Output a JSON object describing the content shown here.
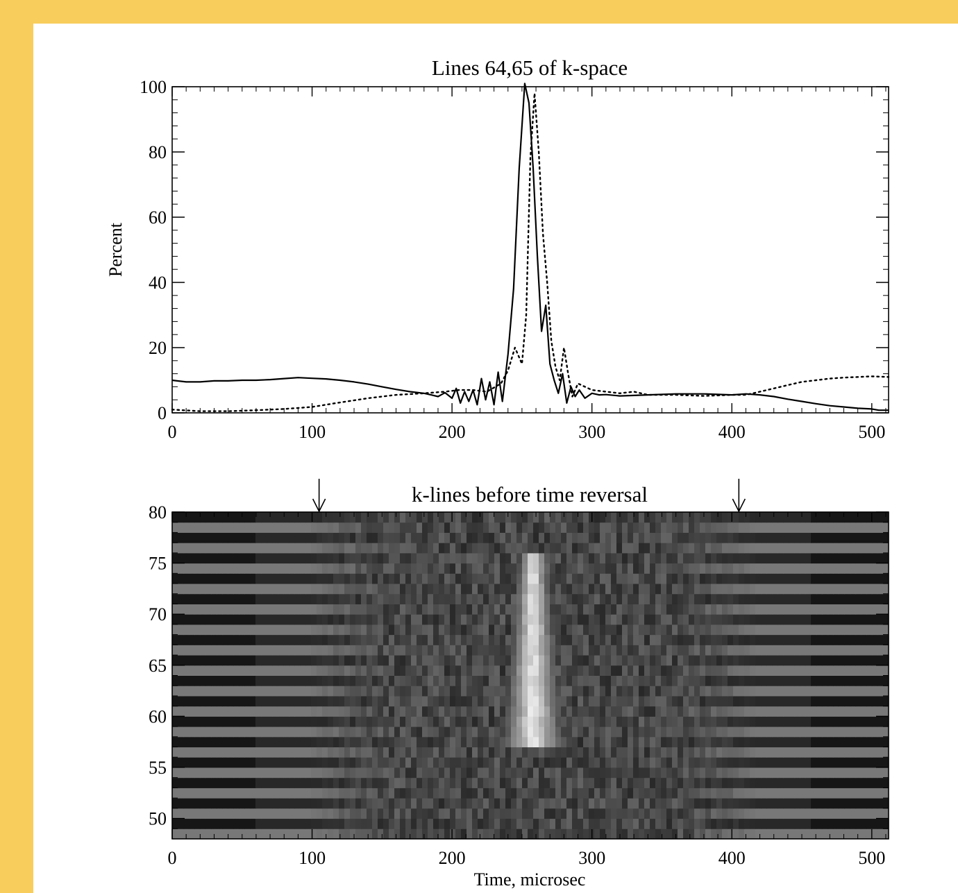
{
  "frame": {
    "color": "#f8cd5c"
  },
  "chart_data": [
    {
      "type": "line",
      "title": "Lines 64,65 of k-space",
      "xlabel": "",
      "ylabel": "Percent",
      "xlim": [
        0,
        512
      ],
      "ylim": [
        0,
        100
      ],
      "x_ticks": [
        0,
        100,
        200,
        300,
        400,
        500
      ],
      "x_tick_labels": [
        "0",
        "100",
        "200",
        "300",
        "400",
        "500"
      ],
      "y_ticks": [
        0,
        20,
        40,
        60,
        80,
        100
      ],
      "y_tick_labels": [
        "0",
        "20",
        "40",
        "60",
        "80",
        "100"
      ],
      "grid": false,
      "series": [
        {
          "style": "solid",
          "x": [
            0,
            10,
            20,
            30,
            40,
            50,
            60,
            70,
            80,
            90,
            100,
            110,
            120,
            130,
            140,
            150,
            160,
            170,
            180,
            185,
            190,
            195,
            200,
            203,
            206,
            209,
            212,
            215,
            218,
            221,
            224,
            227,
            230,
            233,
            236,
            240,
            244,
            248,
            252,
            255,
            258,
            261,
            264,
            267,
            270,
            273,
            276,
            279,
            282,
            285,
            288,
            291,
            295,
            300,
            305,
            310,
            320,
            340,
            360,
            380,
            400,
            410,
            420,
            430,
            440,
            450,
            460,
            470,
            480,
            490,
            500,
            505,
            512
          ],
          "y": [
            10,
            9.5,
            9.5,
            9.8,
            9.8,
            10,
            10,
            10.2,
            10.5,
            10.8,
            10.6,
            10.4,
            10,
            9.5,
            8.8,
            8,
            7.2,
            6.5,
            6,
            5.5,
            5,
            6.2,
            4.5,
            7.5,
            3,
            6.5,
            3.5,
            7,
            2.5,
            10.5,
            4,
            9.5,
            2.5,
            12.5,
            3.5,
            18,
            38,
            75,
            101,
            95,
            75,
            48,
            25,
            33,
            15,
            10,
            6,
            12,
            3,
            8,
            5,
            7,
            4.5,
            6,
            5.5,
            5.6,
            5.2,
            5.5,
            5.8,
            5.8,
            5.5,
            5.8,
            5.5,
            5,
            4.2,
            3.5,
            2.8,
            2.2,
            1.8,
            1.4,
            1.2,
            0.8,
            0.8
          ]
        },
        {
          "style": "dotted",
          "x": [
            0,
            20,
            40,
            60,
            80,
            100,
            120,
            140,
            160,
            180,
            195,
            205,
            215,
            225,
            235,
            240,
            245,
            250,
            253,
            256,
            259,
            262,
            265,
            268,
            271,
            274,
            277,
            280,
            283,
            286,
            290,
            295,
            300,
            310,
            320,
            330,
            340,
            360,
            380,
            400,
            410,
            420,
            430,
            440,
            450,
            460,
            470,
            480,
            490,
            500,
            512
          ],
          "y": [
            1,
            0.5,
            0.5,
            0.8,
            1.2,
            1.8,
            3.2,
            4.5,
            5.5,
            6,
            6.5,
            7,
            7,
            6.5,
            9,
            13,
            20,
            15,
            30,
            78,
            98,
            80,
            55,
            40,
            22,
            14,
            10,
            20,
            12,
            5,
            9,
            8,
            7,
            6.5,
            6,
            6.5,
            5.5,
            5.5,
            5.2,
            5.5,
            5.5,
            6.5,
            7.5,
            8.5,
            9.5,
            10,
            10.5,
            10.8,
            11,
            11.2,
            11
          ]
        }
      ]
    },
    {
      "type": "heatmap",
      "title": "k-lines before time reversal",
      "xlabel": "Time, microsec",
      "ylabel": "",
      "xlim": [
        0,
        512
      ],
      "ylim": [
        48,
        80
      ],
      "x_ticks": [
        0,
        100,
        200,
        300,
        400,
        500
      ],
      "x_tick_labels": [
        "0",
        "100",
        "200",
        "300",
        "400",
        "500"
      ],
      "y_ticks": [
        50,
        55,
        60,
        65,
        70,
        75,
        80
      ],
      "y_tick_labels": [
        "50",
        "55",
        "60",
        "65",
        "70",
        "75",
        "80"
      ],
      "colormap": "grayscale",
      "rows": 32,
      "peak_center_time": 258,
      "bright_region_rows": [
        57,
        75
      ],
      "annotations": [
        {
          "type": "arrow-down",
          "x": 105
        },
        {
          "type": "arrow-down",
          "x": 405
        }
      ]
    }
  ]
}
